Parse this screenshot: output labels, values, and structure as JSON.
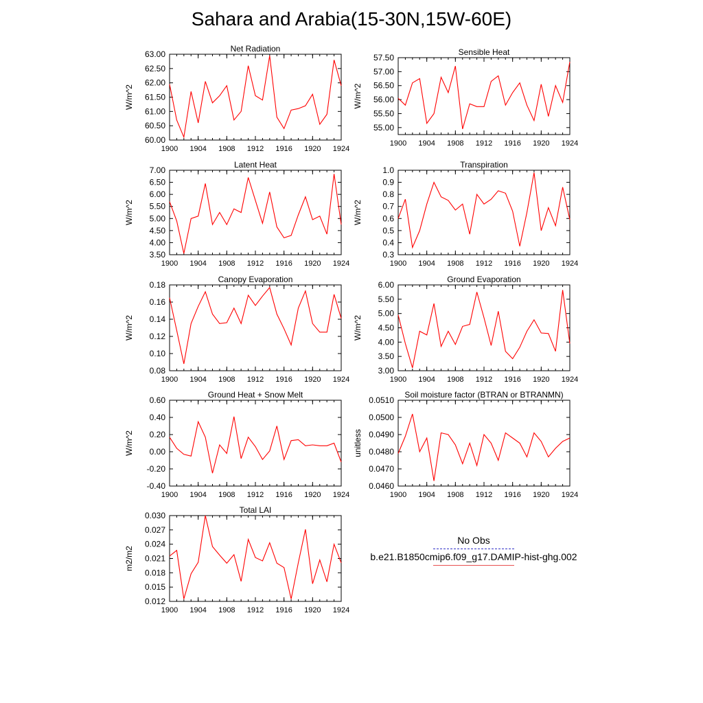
{
  "title": "Sahara and Arabia(15-30N,15W-60E)",
  "colors": {
    "model_line": "#ff0000",
    "obs_line": "#3030c8",
    "axis": "#000000"
  },
  "legend": {
    "obs_label": "No Obs",
    "model_label": "b.e21.B1850cmip6.f09_g17.DAMIP-hist-ghg.002"
  },
  "chart_data": [
    {
      "type": "line",
      "title": "Net Radiation",
      "ylabel": "W/m^2",
      "xlim": [
        1900,
        1924
      ],
      "ylim": [
        60.0,
        63.0
      ],
      "xticks": [
        "1900",
        "1904",
        "1908",
        "1912",
        "1916",
        "1920",
        "1924"
      ],
      "yticks": [
        "60.00",
        "60.50",
        "61.00",
        "61.50",
        "62.00",
        "62.50",
        "63.00"
      ],
      "series": [
        {
          "x": [
            1900,
            1901,
            1902,
            1903,
            1904,
            1905,
            1906,
            1907,
            1908,
            1909,
            1910,
            1911,
            1912,
            1913,
            1914,
            1915,
            1916,
            1917,
            1918,
            1919,
            1920,
            1921,
            1922,
            1923,
            1924
          ],
          "values": [
            61.95,
            60.7,
            60.1,
            61.7,
            60.6,
            62.05,
            61.3,
            61.55,
            61.9,
            60.7,
            61.0,
            62.6,
            61.55,
            61.4,
            62.95,
            60.8,
            60.4,
            61.05,
            61.1,
            61.2,
            61.6,
            60.55,
            60.9,
            62.8,
            61.9
          ]
        }
      ]
    },
    {
      "type": "line",
      "title": "Sensible Heat",
      "ylabel": "W/m^2",
      "xlim": [
        1900,
        1924
      ],
      "ylim": [
        54.75,
        57.5
      ],
      "xticks": [
        "1900",
        "1904",
        "1908",
        "1912",
        "1916",
        "1920",
        "1924"
      ],
      "yticks": [
        "55.00",
        "55.50",
        "56.00",
        "56.50",
        "57.00",
        "57.50"
      ],
      "series": [
        {
          "x": [
            1900,
            1901,
            1902,
            1903,
            1904,
            1905,
            1906,
            1907,
            1908,
            1909,
            1910,
            1911,
            1912,
            1913,
            1914,
            1915,
            1916,
            1917,
            1918,
            1919,
            1920,
            1921,
            1922,
            1923,
            1924
          ],
          "values": [
            56.05,
            55.8,
            56.6,
            56.75,
            55.15,
            55.5,
            56.8,
            56.25,
            57.2,
            54.95,
            55.85,
            55.75,
            55.75,
            56.65,
            56.85,
            55.8,
            56.25,
            56.6,
            55.8,
            55.25,
            56.55,
            55.4,
            56.5,
            55.9,
            57.35
          ]
        }
      ]
    },
    {
      "type": "line",
      "title": "Latent Heat",
      "ylabel": "W/m^2",
      "xlim": [
        1900,
        1924
      ],
      "ylim": [
        3.5,
        7.0
      ],
      "xticks": [
        "1900",
        "1904",
        "1908",
        "1912",
        "1916",
        "1920",
        "1924"
      ],
      "yticks": [
        "3.50",
        "4.00",
        "4.50",
        "5.00",
        "5.50",
        "6.00",
        "6.50",
        "7.00"
      ],
      "series": [
        {
          "x": [
            1900,
            1901,
            1902,
            1903,
            1904,
            1905,
            1906,
            1907,
            1908,
            1909,
            1910,
            1911,
            1912,
            1913,
            1914,
            1915,
            1916,
            1917,
            1918,
            1919,
            1920,
            1921,
            1922,
            1923,
            1924
          ],
          "values": [
            5.7,
            4.9,
            3.55,
            5.0,
            5.1,
            6.45,
            4.75,
            5.25,
            4.75,
            5.4,
            5.25,
            6.7,
            5.75,
            4.8,
            6.1,
            4.65,
            4.2,
            4.3,
            5.15,
            5.9,
            4.95,
            5.1,
            4.35,
            6.85,
            4.75
          ]
        }
      ]
    },
    {
      "type": "line",
      "title": "Transpiration",
      "ylabel": "W/m^2",
      "xlim": [
        1900,
        1924
      ],
      "ylim": [
        0.3,
        1.0
      ],
      "xticks": [
        "1900",
        "1904",
        "1908",
        "1912",
        "1916",
        "1920",
        "1924"
      ],
      "yticks": [
        "0.3",
        "0.4",
        "0.5",
        "0.6",
        "0.7",
        "0.8",
        "0.9",
        "1.0"
      ],
      "series": [
        {
          "x": [
            1900,
            1901,
            1902,
            1903,
            1904,
            1905,
            1906,
            1907,
            1908,
            1909,
            1910,
            1911,
            1912,
            1913,
            1914,
            1915,
            1916,
            1917,
            1918,
            1919,
            1920,
            1921,
            1922,
            1923,
            1924
          ],
          "values": [
            0.6,
            0.76,
            0.36,
            0.5,
            0.72,
            0.9,
            0.78,
            0.75,
            0.67,
            0.72,
            0.47,
            0.8,
            0.72,
            0.76,
            0.83,
            0.81,
            0.66,
            0.37,
            0.65,
            0.98,
            0.5,
            0.69,
            0.54,
            0.86,
            0.59
          ]
        }
      ]
    },
    {
      "type": "line",
      "title": "Canopy Evaporation",
      "ylabel": "W/m^2",
      "xlim": [
        1900,
        1924
      ],
      "ylim": [
        0.08,
        0.18
      ],
      "xticks": [
        "1900",
        "1904",
        "1908",
        "1912",
        "1916",
        "1920",
        "1924"
      ],
      "yticks": [
        "0.08",
        "0.10",
        "0.12",
        "0.14",
        "0.16",
        "0.18"
      ],
      "series": [
        {
          "x": [
            1900,
            1901,
            1902,
            1903,
            1904,
            1905,
            1906,
            1907,
            1908,
            1909,
            1910,
            1911,
            1912,
            1913,
            1914,
            1915,
            1916,
            1917,
            1918,
            1919,
            1920,
            1921,
            1922,
            1923,
            1924
          ],
          "values": [
            0.165,
            0.127,
            0.088,
            0.135,
            0.155,
            0.172,
            0.146,
            0.135,
            0.136,
            0.153,
            0.135,
            0.168,
            0.156,
            0.167,
            0.177,
            0.146,
            0.129,
            0.11,
            0.153,
            0.173,
            0.135,
            0.125,
            0.125,
            0.169,
            0.141
          ]
        }
      ]
    },
    {
      "type": "line",
      "title": "Ground Evaporation",
      "ylabel": "W/m^2",
      "xlim": [
        1900,
        1924
      ],
      "ylim": [
        3.0,
        6.0
      ],
      "xticks": [
        "1900",
        "1904",
        "1908",
        "1912",
        "1916",
        "1920",
        "1924"
      ],
      "yticks": [
        "3.00",
        "3.50",
        "4.00",
        "4.50",
        "5.00",
        "5.50",
        "6.00"
      ],
      "series": [
        {
          "x": [
            1900,
            1901,
            1902,
            1903,
            1904,
            1905,
            1906,
            1907,
            1908,
            1909,
            1910,
            1911,
            1912,
            1913,
            1914,
            1915,
            1916,
            1917,
            1918,
            1919,
            1920,
            1921,
            1922,
            1923,
            1924
          ],
          "values": [
            4.95,
            3.95,
            3.1,
            4.38,
            4.25,
            5.35,
            3.85,
            4.38,
            3.92,
            4.55,
            4.62,
            5.75,
            4.85,
            3.88,
            5.08,
            3.68,
            3.42,
            3.82,
            4.38,
            4.78,
            4.32,
            4.3,
            3.68,
            5.82,
            3.95
          ]
        }
      ]
    },
    {
      "type": "line",
      "title": "Ground Heat + Snow Melt",
      "ylabel": "W/m^2",
      "xlim": [
        1900,
        1924
      ],
      "ylim": [
        -0.4,
        0.6
      ],
      "xticks": [
        "1900",
        "1904",
        "1908",
        "1912",
        "1916",
        "1920",
        "1924"
      ],
      "yticks": [
        "-0.40",
        "-0.20",
        "0.00",
        "0.20",
        "0.40",
        "0.60"
      ],
      "series": [
        {
          "x": [
            1900,
            1901,
            1902,
            1903,
            1904,
            1905,
            1906,
            1907,
            1908,
            1909,
            1910,
            1911,
            1912,
            1913,
            1914,
            1915,
            1916,
            1917,
            1918,
            1919,
            1920,
            1921,
            1922,
            1923,
            1924
          ],
          "values": [
            0.17,
            0.04,
            -0.03,
            -0.05,
            0.35,
            0.17,
            -0.25,
            0.08,
            -0.02,
            0.41,
            -0.08,
            0.17,
            0.06,
            -0.09,
            0.01,
            0.3,
            -0.09,
            0.13,
            0.14,
            0.07,
            0.08,
            0.07,
            0.07,
            0.1,
            -0.12
          ]
        }
      ]
    },
    {
      "type": "line",
      "title": "Soil moisture factor (BTRAN or BTRANMN)",
      "ylabel": "unitless",
      "xlim": [
        1900,
        1924
      ],
      "ylim": [
        0.046,
        0.051
      ],
      "xticks": [
        "1900",
        "1904",
        "1908",
        "1912",
        "1916",
        "1920",
        "1924"
      ],
      "yticks": [
        "0.0460",
        "0.0470",
        "0.0480",
        "0.0490",
        "0.0500",
        "0.0510"
      ],
      "series": [
        {
          "x": [
            1900,
            1901,
            1902,
            1903,
            1904,
            1905,
            1906,
            1907,
            1908,
            1909,
            1910,
            1911,
            1912,
            1913,
            1914,
            1915,
            1916,
            1917,
            1918,
            1919,
            1920,
            1921,
            1922,
            1923,
            1924
          ],
          "values": [
            0.0479,
            0.0489,
            0.0502,
            0.048,
            0.0488,
            0.0463,
            0.0491,
            0.049,
            0.0484,
            0.0473,
            0.0485,
            0.0472,
            0.049,
            0.0485,
            0.0475,
            0.0491,
            0.0488,
            0.0485,
            0.0477,
            0.0491,
            0.0486,
            0.0477,
            0.0482,
            0.0486,
            0.0488
          ]
        }
      ]
    },
    {
      "type": "line",
      "title": "Total LAI",
      "ylabel": "m2/m2",
      "xlim": [
        1900,
        1924
      ],
      "ylim": [
        0.012,
        0.03
      ],
      "xticks": [
        "1900",
        "1904",
        "1908",
        "1912",
        "1916",
        "1920",
        "1924"
      ],
      "yticks": [
        "0.012",
        "0.015",
        "0.018",
        "0.021",
        "0.024",
        "0.027",
        "0.030"
      ],
      "series": [
        {
          "x": [
            1900,
            1901,
            1902,
            1903,
            1904,
            1905,
            1906,
            1907,
            1908,
            1909,
            1910,
            1911,
            1912,
            1913,
            1914,
            1915,
            1916,
            1917,
            1918,
            1919,
            1920,
            1921,
            1922,
            1923,
            1924
          ],
          "values": [
            0.0215,
            0.0227,
            0.0125,
            0.0178,
            0.0202,
            0.03,
            0.0235,
            0.0217,
            0.02,
            0.0218,
            0.0162,
            0.025,
            0.0212,
            0.0205,
            0.0243,
            0.02,
            0.0191,
            0.0125,
            0.0201,
            0.0271,
            0.0157,
            0.0207,
            0.0161,
            0.024,
            0.0201
          ]
        }
      ]
    }
  ]
}
